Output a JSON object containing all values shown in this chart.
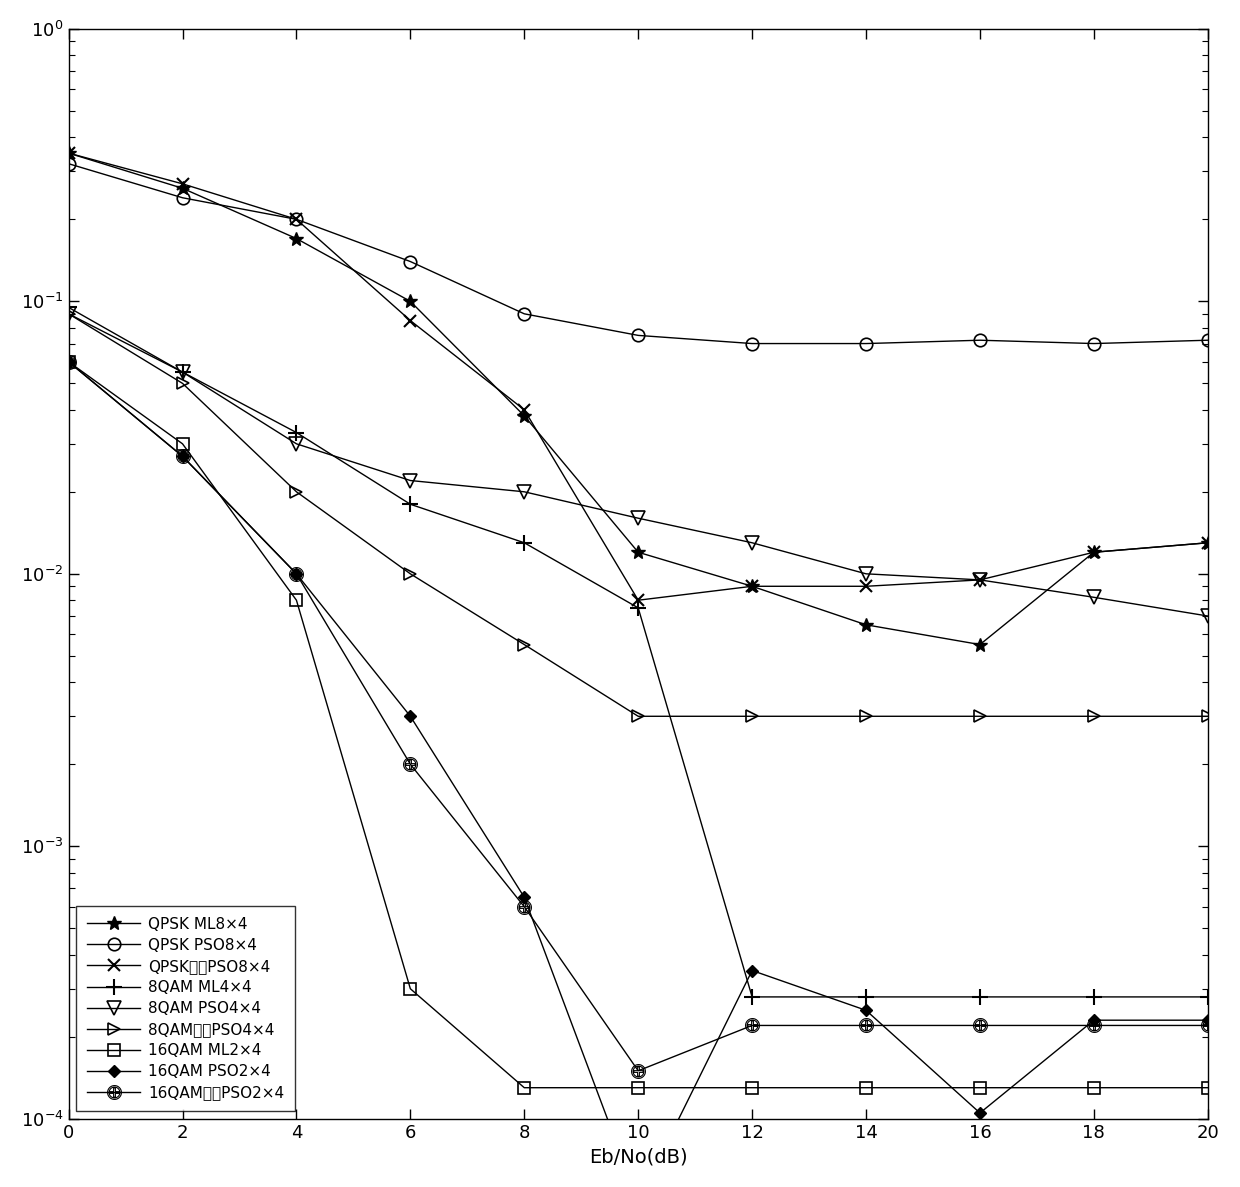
{
  "xlabel": "Eb/No(dB)",
  "xlim": [
    0,
    20
  ],
  "ylim": [
    0.0001,
    1.0
  ],
  "xticks": [
    0,
    2,
    4,
    6,
    8,
    10,
    12,
    14,
    16,
    18,
    20
  ],
  "figsize": [
    12.4,
    11.87
  ],
  "dpi": 100,
  "background_color": "#ffffff",
  "line_color": "#000000",
  "curves": [
    {
      "label": "QPSK ML8×4",
      "marker": "*",
      "ms": 10,
      "mfc": "black",
      "mew": 1.0,
      "x": [
        0,
        2,
        4,
        6,
        8,
        10,
        12,
        14,
        16,
        18,
        20
      ],
      "y": [
        0.35,
        0.26,
        0.17,
        0.1,
        0.038,
        0.012,
        0.009,
        0.0065,
        0.0055,
        0.012,
        0.013
      ]
    },
    {
      "label": "QPSK PSO8×4",
      "marker": "o",
      "ms": 9,
      "mfc": "none",
      "mew": 1.2,
      "x": [
        0,
        2,
        4,
        6,
        8,
        10,
        12,
        14,
        16,
        18,
        20
      ],
      "y": [
        0.32,
        0.24,
        0.2,
        0.14,
        0.09,
        0.075,
        0.07,
        0.07,
        0.072,
        0.07,
        0.072
      ]
    },
    {
      "label": "QPSK改进PSO8×4",
      "marker": "x",
      "ms": 9,
      "mfc": "none",
      "mew": 1.5,
      "x": [
        0,
        2,
        4,
        6,
        8,
        10,
        12,
        14,
        16,
        18,
        20
      ],
      "y": [
        0.35,
        0.27,
        0.2,
        0.085,
        0.04,
        0.008,
        0.009,
        0.009,
        0.0095,
        0.012,
        0.013
      ]
    },
    {
      "label": "8QAM ML4×4",
      "marker": "+",
      "ms": 11,
      "mfc": "none",
      "mew": 1.5,
      "x": [
        0,
        2,
        4,
        6,
        8,
        10,
        12,
        14,
        16,
        18,
        20
      ],
      "y": [
        0.095,
        0.055,
        0.033,
        0.018,
        0.013,
        0.0075,
        0.00028,
        0.00028,
        0.00028,
        0.00028,
        0.00028
      ]
    },
    {
      "label": "8QAM PSO4×4",
      "marker": "v",
      "ms": 10,
      "mfc": "none",
      "mew": 1.2,
      "x": [
        0,
        2,
        4,
        6,
        8,
        10,
        12,
        14,
        16,
        18,
        20
      ],
      "y": [
        0.09,
        0.055,
        0.03,
        0.022,
        0.02,
        0.016,
        0.013,
        0.01,
        0.0095,
        0.0082,
        0.007
      ]
    },
    {
      "label": "8QAM改进PSO4×4",
      "marker": ">",
      "ms": 9,
      "mfc": "none",
      "mew": 1.2,
      "x": [
        0,
        2,
        4,
        6,
        8,
        10,
        12,
        14,
        16,
        18,
        20
      ],
      "y": [
        0.09,
        0.05,
        0.02,
        0.01,
        0.0055,
        0.003,
        0.003,
        0.003,
        0.003,
        0.003,
        0.003
      ]
    },
    {
      "label": "16QAM ML2×4",
      "marker": "s",
      "ms": 9,
      "mfc": "none",
      "mew": 1.2,
      "x": [
        0,
        2,
        4,
        6,
        8,
        10,
        12,
        14,
        16,
        18,
        20
      ],
      "y": [
        0.06,
        0.03,
        0.008,
        0.0003,
        0.00013,
        0.00013,
        0.00013,
        0.00013,
        0.00013,
        0.00013,
        0.00013
      ]
    },
    {
      "label": "16QAM PSO2×4",
      "marker": "D",
      "ms": 6,
      "mfc": "black",
      "mew": 1.0,
      "x": [
        0,
        2,
        4,
        6,
        8,
        10,
        12,
        14,
        16,
        18,
        20
      ],
      "y": [
        0.06,
        0.027,
        0.01,
        0.003,
        0.00065,
        5e-05,
        0.00035,
        0.00025,
        0.000105,
        0.00023,
        0.00023
      ]
    },
    {
      "label": "16QAM改进PSO2×4",
      "marker": "$\\oplus$",
      "ms": 10,
      "mfc": "none",
      "mew": 0.8,
      "x": [
        0,
        2,
        4,
        6,
        8,
        10,
        12,
        14,
        16,
        18,
        20
      ],
      "y": [
        0.06,
        0.027,
        0.01,
        0.002,
        0.0006,
        0.00015,
        0.00022,
        0.00022,
        0.00022,
        0.00022,
        0.00022
      ]
    }
  ]
}
